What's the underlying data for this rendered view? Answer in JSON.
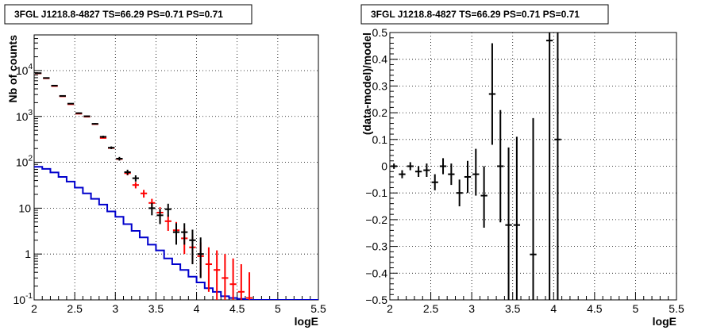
{
  "chart_data": [
    {
      "type": "scatter",
      "title": "3FGL J1218.8-4827 TS=66.29 PS=0.71 PS=0.71",
      "xlabel": "logE",
      "ylabel": "Nb of counts",
      "xlim": [
        2,
        5.5
      ],
      "ylim": [
        0.1,
        60000
      ],
      "yscale": "log",
      "grid": true,
      "x_ticks": [
        "2",
        "2.5",
        "3",
        "3.5",
        "4",
        "4.5",
        "5",
        "5.5"
      ],
      "y_ticks": [
        {
          "base": "10",
          "exp": "-1",
          "value": 0.1
        },
        {
          "base": "1",
          "exp": "",
          "value": 1
        },
        {
          "base": "10",
          "exp": "",
          "value": 10
        },
        {
          "base": "10",
          "exp": "2",
          "value": 100
        },
        {
          "base": "10",
          "exp": "3",
          "value": 1000
        },
        {
          "base": "10",
          "exp": "4",
          "value": 10000
        }
      ],
      "colors": {
        "data": "#000000",
        "model": "#ff0000",
        "component": "#0000cc"
      },
      "series": [
        {
          "kind": "points",
          "color": "#000000",
          "points": [
            {
              "x": 2.05,
              "y": 8800,
              "lo": 8600,
              "hi": 9000
            },
            {
              "x": 2.15,
              "y": 6900,
              "lo": 6750,
              "hi": 7050
            },
            {
              "x": 2.25,
              "y": 4700,
              "lo": 4600,
              "hi": 4800
            },
            {
              "x": 2.35,
              "y": 2800,
              "lo": 2730,
              "hi": 2870
            },
            {
              "x": 2.45,
              "y": 1900,
              "lo": 1850,
              "hi": 1950
            },
            {
              "x": 2.55,
              "y": 1180,
              "lo": 1140,
              "hi": 1220
            },
            {
              "x": 2.65,
              "y": 1010,
              "lo": 975,
              "hi": 1045
            },
            {
              "x": 2.75,
              "y": 690,
              "lo": 665,
              "hi": 715
            },
            {
              "x": 2.85,
              "y": 360,
              "lo": 340,
              "hi": 380
            },
            {
              "x": 2.95,
              "y": 208,
              "lo": 194,
              "hi": 222
            },
            {
              "x": 3.05,
              "y": 120,
              "lo": 109,
              "hi": 131
            },
            {
              "x": 3.15,
              "y": 61,
              "lo": 53,
              "hi": 69
            },
            {
              "x": 3.25,
              "y": 45,
              "lo": 38,
              "hi": 52
            },
            {
              "x": 3.45,
              "y": 10,
              "lo": 7,
              "hi": 13
            },
            {
              "x": 3.55,
              "y": 7,
              "lo": 4.5,
              "hi": 9.5
            },
            {
              "x": 3.65,
              "y": 9.5,
              "lo": 6.5,
              "hi": 12.5
            },
            {
              "x": 3.75,
              "y": 3,
              "lo": 1.6,
              "hi": 4.7
            },
            {
              "x": 3.85,
              "y": 3,
              "lo": 1.6,
              "hi": 4.7
            },
            {
              "x": 3.95,
              "y": 2,
              "lo": 0.6,
              "hi": 3.4
            },
            {
              "x": 4.05,
              "y": 1,
              "lo": 0.3,
              "hi": 2.3
            }
          ]
        },
        {
          "kind": "points",
          "color": "#ff0000",
          "points": [
            {
              "x": 2.05,
              "y": 8700
            },
            {
              "x": 2.15,
              "y": 6800
            },
            {
              "x": 2.25,
              "y": 4600
            },
            {
              "x": 2.35,
              "y": 2750
            },
            {
              "x": 2.45,
              "y": 1850
            },
            {
              "x": 2.55,
              "y": 1150
            },
            {
              "x": 2.65,
              "y": 990
            },
            {
              "x": 2.75,
              "y": 680
            },
            {
              "x": 2.85,
              "y": 340
            },
            {
              "x": 2.95,
              "y": 205
            },
            {
              "x": 3.05,
              "y": 118
            },
            {
              "x": 3.15,
              "y": 58,
              "lo": 52,
              "hi": 64
            },
            {
              "x": 3.25,
              "y": 32,
              "lo": 27,
              "hi": 37
            },
            {
              "x": 3.35,
              "y": 21,
              "lo": 17,
              "hi": 25
            },
            {
              "x": 3.45,
              "y": 13,
              "lo": 10,
              "hi": 16
            },
            {
              "x": 3.55,
              "y": 8,
              "lo": 5.5,
              "hi": 10.5
            },
            {
              "x": 3.65,
              "y": 5.2,
              "lo": 3.2,
              "hi": 7.2
            },
            {
              "x": 3.75,
              "y": 3.3,
              "lo": 1.8,
              "hi": 5
            },
            {
              "x": 3.85,
              "y": 2.2,
              "lo": 1,
              "hi": 3.6
            },
            {
              "x": 3.95,
              "y": 1.4,
              "lo": 0.6,
              "hi": 2.5
            },
            {
              "x": 4.05,
              "y": 0.9,
              "lo": 0.3,
              "hi": 1.8
            },
            {
              "x": 4.15,
              "y": 0.6,
              "lo": 0.15,
              "hi": 1.4
            },
            {
              "x": 4.25,
              "y": 0.45,
              "lo": 0.1,
              "hi": 1.2
            },
            {
              "x": 4.35,
              "y": 0.3,
              "lo": 0.1,
              "hi": 1
            },
            {
              "x": 4.45,
              "y": 0.22,
              "lo": 0.1,
              "hi": 0.8
            },
            {
              "x": 4.55,
              "y": 0.15,
              "lo": 0.1,
              "hi": 0.6
            },
            {
              "x": 4.65,
              "y": 0.11,
              "lo": 0.1,
              "hi": 0.4
            }
          ]
        },
        {
          "kind": "step",
          "color": "#0000cc",
          "edges": [
            2.0,
            2.1,
            2.2,
            2.3,
            2.4,
            2.5,
            2.6,
            2.7,
            2.8,
            2.9,
            3.0,
            3.1,
            3.2,
            3.3,
            3.4,
            3.5,
            3.6,
            3.7,
            3.8,
            3.9,
            4.0,
            4.1,
            4.2,
            4.3,
            4.4,
            4.5,
            4.6,
            4.7,
            5.5
          ],
          "values": [
            80,
            72,
            60,
            48,
            38,
            28,
            21,
            16,
            12,
            8.5,
            6.5,
            4.5,
            3.2,
            2.3,
            1.6,
            1.2,
            0.8,
            0.6,
            0.45,
            0.32,
            0.24,
            0.18,
            0.15,
            0.12,
            0.11,
            0.105,
            0.1,
            0.1
          ]
        }
      ]
    },
    {
      "type": "scatter",
      "title": "3FGL J1218.8-4827 TS=66.29 PS=0.71 PS=0.71",
      "xlabel": "logE",
      "ylabel": "(data-model)/model",
      "xlim": [
        2,
        5.5
      ],
      "ylim": [
        -0.5,
        0.5
      ],
      "grid": true,
      "x_ticks": [
        "2",
        "2.5",
        "3",
        "3.5",
        "4",
        "4.5",
        "5",
        "5.5"
      ],
      "y_ticks": [
        "−0.5",
        "−0.4",
        "−0.3",
        "−0.2",
        "−0.1",
        "0",
        "0.1",
        "0.2",
        "0.3",
        "0.4",
        "0.5"
      ],
      "y_tick_values": [
        -0.5,
        -0.4,
        -0.3,
        -0.2,
        -0.1,
        0,
        0.1,
        0.2,
        0.3,
        0.4,
        0.5
      ],
      "series": [
        {
          "kind": "points",
          "color": "#000000",
          "points": [
            {
              "x": 2.05,
              "y": 0.0,
              "lo": -0.01,
              "hi": 0.01
            },
            {
              "x": 2.15,
              "y": -0.03,
              "lo": -0.045,
              "hi": -0.015
            },
            {
              "x": 2.25,
              "y": 0.0,
              "lo": -0.015,
              "hi": 0.015
            },
            {
              "x": 2.35,
              "y": -0.02,
              "lo": -0.04,
              "hi": 0.0
            },
            {
              "x": 2.45,
              "y": -0.015,
              "lo": -0.04,
              "hi": 0.01
            },
            {
              "x": 2.55,
              "y": -0.06,
              "lo": -0.09,
              "hi": -0.03
            },
            {
              "x": 2.65,
              "y": 0.0,
              "lo": -0.03,
              "hi": 0.03
            },
            {
              "x": 2.75,
              "y": -0.03,
              "lo": -0.07,
              "hi": 0.01
            },
            {
              "x": 2.85,
              "y": -0.1,
              "lo": -0.15,
              "hi": -0.05
            },
            {
              "x": 2.95,
              "y": -0.04,
              "lo": -0.1,
              "hi": 0.02
            },
            {
              "x": 3.05,
              "y": -0.03,
              "lo": -0.11,
              "hi": 0.065
            },
            {
              "x": 3.15,
              "y": -0.11,
              "lo": -0.23,
              "hi": 0.0
            },
            {
              "x": 3.25,
              "y": 0.27,
              "lo": 0.08,
              "hi": 0.46
            },
            {
              "x": 3.35,
              "y": 0.0,
              "lo": -0.21,
              "hi": 0.21
            },
            {
              "x": 3.45,
              "y": -0.22,
              "lo": -0.5,
              "hi": 0.07
            },
            {
              "x": 3.55,
              "y": -0.22,
              "lo": -0.5,
              "hi": 0.11
            },
            {
              "x": 3.75,
              "y": -0.33,
              "lo": -0.5,
              "hi": 0.18
            },
            {
              "x": 3.95,
              "y": 0.47,
              "lo": -0.5,
              "hi": 0.5
            },
            {
              "x": 4.05,
              "y": 0.1,
              "lo": -0.5,
              "hi": 0.5
            }
          ]
        }
      ]
    }
  ]
}
